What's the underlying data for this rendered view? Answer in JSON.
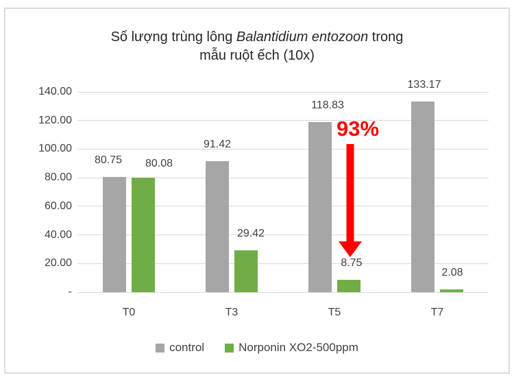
{
  "title": {
    "line1_prefix": "Số lượng trùng lông ",
    "line1_italic": "Balantidium entozoon",
    "line1_suffix": " trong",
    "line2": "mẫu ruột ếch (10x)"
  },
  "chart_data": {
    "type": "bar",
    "title": "Số lượng trùng lông Balantidium entozoon trong mẫu ruột ếch (10x)",
    "categories": [
      "T0",
      "T3",
      "T5",
      "T7"
    ],
    "series": [
      {
        "name": "control",
        "color": "#a6a6a6",
        "values": [
          80.75,
          91.42,
          118.83,
          133.17
        ],
        "labels": [
          "80.75",
          "91.42",
          "118.83",
          "133.17"
        ],
        "label_dx": [
          -9,
          0,
          11,
          2
        ],
        "label_dy": [
          0,
          0,
          0,
          0
        ]
      },
      {
        "name": "Norponin XO2-500ppm",
        "color": "#70ad47",
        "values": [
          80.08,
          29.42,
          8.75,
          2.08
        ],
        "labels": [
          "80.08",
          "29.42",
          "8.75",
          "2.08"
        ],
        "label_dx": [
          23,
          7,
          4,
          1
        ],
        "label_dy": [
          4,
          0,
          0,
          0
        ]
      }
    ],
    "y_axis": {
      "ticks": [
        "140.00",
        "120.00",
        "100.00",
        "80.00",
        "60.00",
        "40.00",
        "20.00",
        "-"
      ],
      "tick_values": [
        140,
        120,
        100,
        80,
        60,
        40,
        20,
        0
      ],
      "min": 0,
      "max": 140,
      "grid": true
    },
    "annotation": {
      "text": "93%",
      "color": "#ff0000",
      "target_category": "T5",
      "meaning": "reduction arrow pointing down to 8.75"
    },
    "legend_position": "bottom",
    "xlabel": "",
    "ylabel": ""
  },
  "colors": {
    "grid": "#d9d9d9",
    "axis_text": "#404040",
    "title_text": "#262626",
    "frame_border": "#dcdcdc",
    "annotation_red": "#ff0000"
  }
}
